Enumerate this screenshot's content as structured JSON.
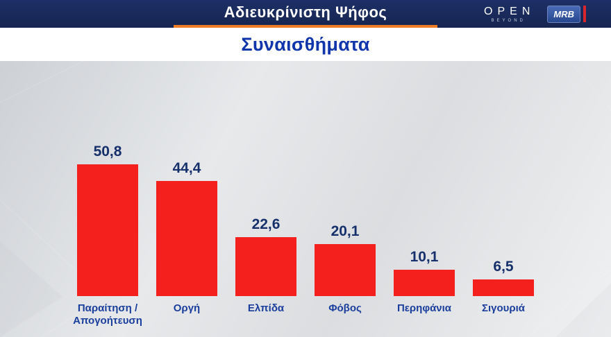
{
  "header": {
    "title": "Αδιευκρίνιστη Ψήφος",
    "open_logo": {
      "text": "OPEN",
      "subtext": "BEYOND"
    },
    "mrb_logo": "MRB"
  },
  "subtitle": "Συναισθήματα",
  "chart_data": {
    "type": "bar",
    "title": "Συναισθήματα",
    "categories": [
      "Παραίτηση /\nΑπογοήτευση",
      "Οργή",
      "Ελπίδα",
      "Φόβος",
      "Περηφάνια",
      "Σιγουριά"
    ],
    "values": [
      50.8,
      44.4,
      22.6,
      20.1,
      10.1,
      6.5
    ],
    "value_labels": [
      "50,8",
      "44,4",
      "22,6",
      "20,1",
      "10,1",
      "6,5"
    ],
    "ylim": [
      0,
      55
    ],
    "grid": false,
    "legend": false,
    "bar_color": "#f3201e",
    "value_label_color": "#16306b",
    "category_label_color": "#1a3e9c"
  },
  "colors": {
    "header_bg": "#1a2a60",
    "accent_orange": "#ef7d23",
    "subtitle_blue": "#1136ac",
    "mrb_red": "#d9262c"
  }
}
